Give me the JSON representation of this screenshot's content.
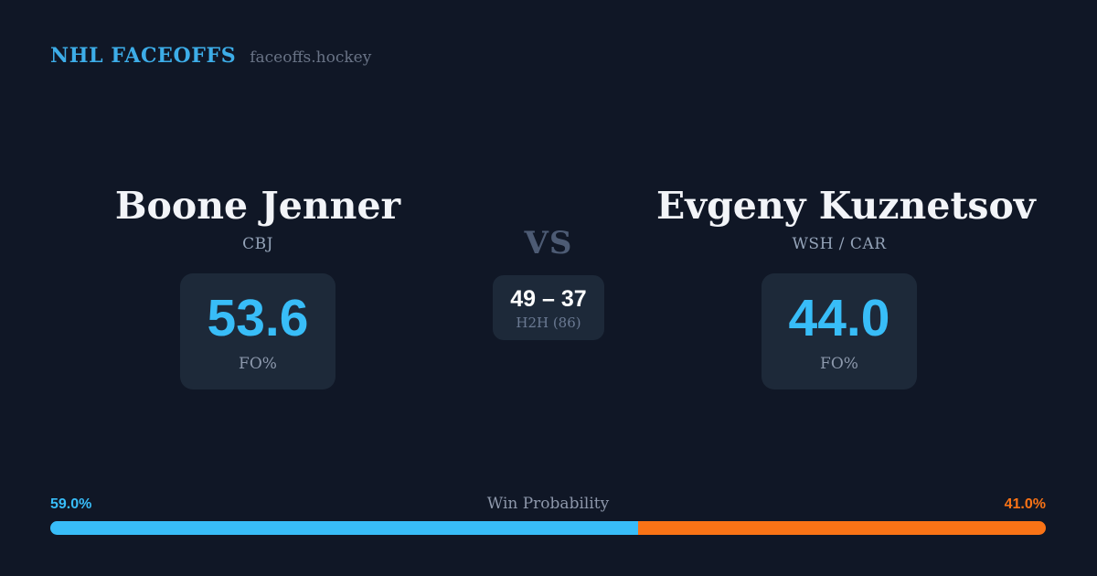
{
  "header": {
    "brand": "NHL FACEOFFS",
    "site": "faceoffs.hockey"
  },
  "matchup": {
    "vs": "VS",
    "left": {
      "name": "Boone Jenner",
      "team": "CBJ",
      "value": "53.6",
      "label": "FO%"
    },
    "right": {
      "name": "Evgeny Kuznetsov",
      "team": "WSH / CAR",
      "value": "44.0",
      "label": "FO%"
    },
    "h2h": {
      "score": "49 – 37",
      "label": "H2H (86)"
    }
  },
  "win_probability": {
    "title": "Win Probability",
    "left_pct": "59.0%",
    "right_pct": "41.0%",
    "left_value": 59.0,
    "right_value": 41.0,
    "colors": {
      "left": "#38bdf8",
      "right": "#f97316"
    }
  },
  "colors": {
    "background": "#101726",
    "card_background": "#1d2939",
    "accent_blue": "#38bdf8",
    "accent_orange": "#f97316",
    "brand_blue": "#3dade8",
    "name_text": "#f2f4f8",
    "muted_text": "#94a3b8",
    "vs_text": "#4d5b74"
  }
}
